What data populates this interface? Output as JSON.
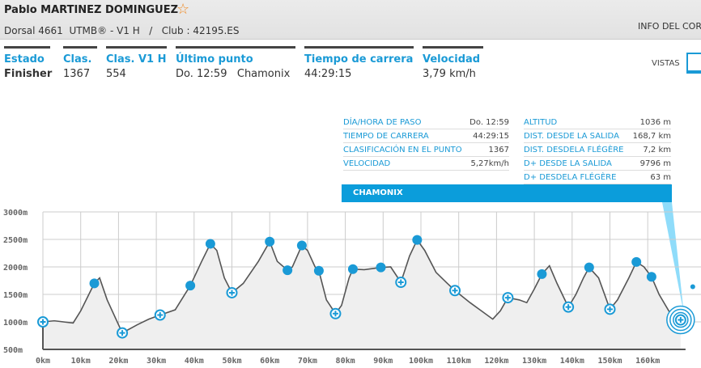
{
  "header": {
    "name": "Pablo MARTINEZ DOMINGUEZ",
    "subtitle": "Dorsal 4661  UTMB® - V1 H   /   Club : 42195.ES",
    "info_link": "INFO DEL COR"
  },
  "stats": [
    {
      "label": "Estado",
      "value": "Finisher"
    },
    {
      "label": "Clas.",
      "value": "1367"
    },
    {
      "label": "Clas. V1 H",
      "value": "554"
    },
    {
      "label": "Último punto",
      "value": "Do. 12:59   Chamonix"
    },
    {
      "label": "Tiempo de carrera",
      "value": "44:29:15"
    },
    {
      "label": "Velocidad",
      "value": "3,79 km/h"
    }
  ],
  "views": {
    "label": "VISTAS"
  },
  "point_info": {
    "left": [
      {
        "k": "DÍA/HORA DE PASO",
        "v": "Do. 12:59"
      },
      {
        "k": "TIEMPO DE CARRERA",
        "v": "44:29:15"
      },
      {
        "k": "CLASIFICACIÓN EN EL PUNTO",
        "v": "1367"
      },
      {
        "k": "VELOCIDAD",
        "v": "5,27km/h"
      }
    ],
    "right": [
      {
        "k": "ALTITUD",
        "v": "1036 m"
      },
      {
        "k": "DIST. DESDE LA SALIDA",
        "v": "168,7 km"
      },
      {
        "k": "DIST. DESDELA FLÉGÈRE",
        "v": "7,2 km"
      },
      {
        "k": "D+ DESDE LA SALIDA",
        "v": "9796 m"
      },
      {
        "k": "D+ DESDELA FLÉGÈRE",
        "v": "63 m"
      }
    ],
    "banner": "CHAMONIX"
  },
  "colors": {
    "accent": "#1a9ad6",
    "line": "#555555",
    "fill": "#efefef"
  },
  "chart_data": {
    "type": "area",
    "xlabel": "km",
    "ylabel": "m",
    "xlim": [
      0,
      170
    ],
    "ylim": [
      500,
      3000
    ],
    "x_ticks": [
      "0km",
      "10km",
      "20km",
      "30km",
      "40km",
      "50km",
      "60km",
      "70km",
      "80km",
      "90km",
      "100km",
      "110km",
      "120km",
      "130km",
      "140km",
      "150km",
      "160km"
    ],
    "y_ticks": [
      "3000m",
      "2500m",
      "2000m",
      "1500m",
      "1000m",
      "500m"
    ],
    "profile": [
      [
        0,
        1000
      ],
      [
        3,
        1020
      ],
      [
        8,
        980
      ],
      [
        10,
        1200
      ],
      [
        13.6,
        1700
      ],
      [
        15,
        1800
      ],
      [
        17,
        1400
      ],
      [
        20,
        950
      ],
      [
        21,
        800
      ],
      [
        25,
        950
      ],
      [
        28,
        1050
      ],
      [
        31,
        1125
      ],
      [
        35,
        1220
      ],
      [
        38,
        1550
      ],
      [
        39,
        1660
      ],
      [
        42,
        2100
      ],
      [
        44.3,
        2420
      ],
      [
        46,
        2300
      ],
      [
        48,
        1800
      ],
      [
        50,
        1530
      ],
      [
        53,
        1700
      ],
      [
        57,
        2100
      ],
      [
        60,
        2460
      ],
      [
        62,
        2100
      ],
      [
        64.7,
        1940
      ],
      [
        66,
        2000
      ],
      [
        68.5,
        2390
      ],
      [
        70,
        2300
      ],
      [
        72,
        2000
      ],
      [
        73,
        1930
      ],
      [
        75,
        1400
      ],
      [
        77.4,
        1150
      ],
      [
        79,
        1300
      ],
      [
        81,
        1800
      ],
      [
        82,
        1960
      ],
      [
        85,
        1950
      ],
      [
        89.4,
        1990
      ],
      [
        92,
        2000
      ],
      [
        94.7,
        1720
      ],
      [
        97,
        2200
      ],
      [
        99,
        2490
      ],
      [
        101,
        2300
      ],
      [
        104,
        1900
      ],
      [
        107,
        1700
      ],
      [
        109,
        1570
      ],
      [
        113,
        1350
      ],
      [
        116,
        1200
      ],
      [
        119,
        1050
      ],
      [
        121,
        1200
      ],
      [
        123,
        1440
      ],
      [
        126,
        1400
      ],
      [
        128,
        1350
      ],
      [
        130,
        1600
      ],
      [
        132,
        1870
      ],
      [
        134,
        2020
      ],
      [
        136,
        1700
      ],
      [
        139,
        1270
      ],
      [
        141,
        1500
      ],
      [
        143,
        1800
      ],
      [
        144.5,
        1990
      ],
      [
        147,
        1800
      ],
      [
        150,
        1230
      ],
      [
        152,
        1400
      ],
      [
        155,
        1800
      ],
      [
        157,
        2090
      ],
      [
        159,
        2000
      ],
      [
        161,
        1820
      ],
      [
        163,
        1500
      ],
      [
        166,
        1150
      ],
      [
        168.7,
        1036
      ]
    ],
    "checkpoints": [
      {
        "km": 0,
        "alt": 1000,
        "type": "aid"
      },
      {
        "km": 13.6,
        "alt": 1700,
        "type": "point"
      },
      {
        "km": 21,
        "alt": 800,
        "type": "aid"
      },
      {
        "km": 31,
        "alt": 1125,
        "type": "aid"
      },
      {
        "km": 39,
        "alt": 1660,
        "type": "point"
      },
      {
        "km": 44.3,
        "alt": 2420,
        "type": "point"
      },
      {
        "km": 50,
        "alt": 1530,
        "type": "aid"
      },
      {
        "km": 60,
        "alt": 2460,
        "type": "point"
      },
      {
        "km": 64.7,
        "alt": 1940,
        "type": "point"
      },
      {
        "km": 68.5,
        "alt": 2390,
        "type": "point"
      },
      {
        "km": 73,
        "alt": 1930,
        "type": "point"
      },
      {
        "km": 77.4,
        "alt": 1150,
        "type": "aid"
      },
      {
        "km": 82,
        "alt": 1960,
        "type": "point"
      },
      {
        "km": 89.4,
        "alt": 1990,
        "type": "point"
      },
      {
        "km": 94.7,
        "alt": 1720,
        "type": "aid"
      },
      {
        "km": 99,
        "alt": 2490,
        "type": "point"
      },
      {
        "km": 109,
        "alt": 1570,
        "type": "aid"
      },
      {
        "km": 123,
        "alt": 1440,
        "type": "aid"
      },
      {
        "km": 132,
        "alt": 1870,
        "type": "point"
      },
      {
        "km": 139,
        "alt": 1270,
        "type": "aid"
      },
      {
        "km": 144.5,
        "alt": 1990,
        "type": "point"
      },
      {
        "km": 150,
        "alt": 1230,
        "type": "aid"
      },
      {
        "km": 157,
        "alt": 2090,
        "type": "point"
      },
      {
        "km": 161,
        "alt": 1820,
        "type": "point"
      },
      {
        "km": 168.7,
        "alt": 1036,
        "type": "finish"
      }
    ]
  }
}
